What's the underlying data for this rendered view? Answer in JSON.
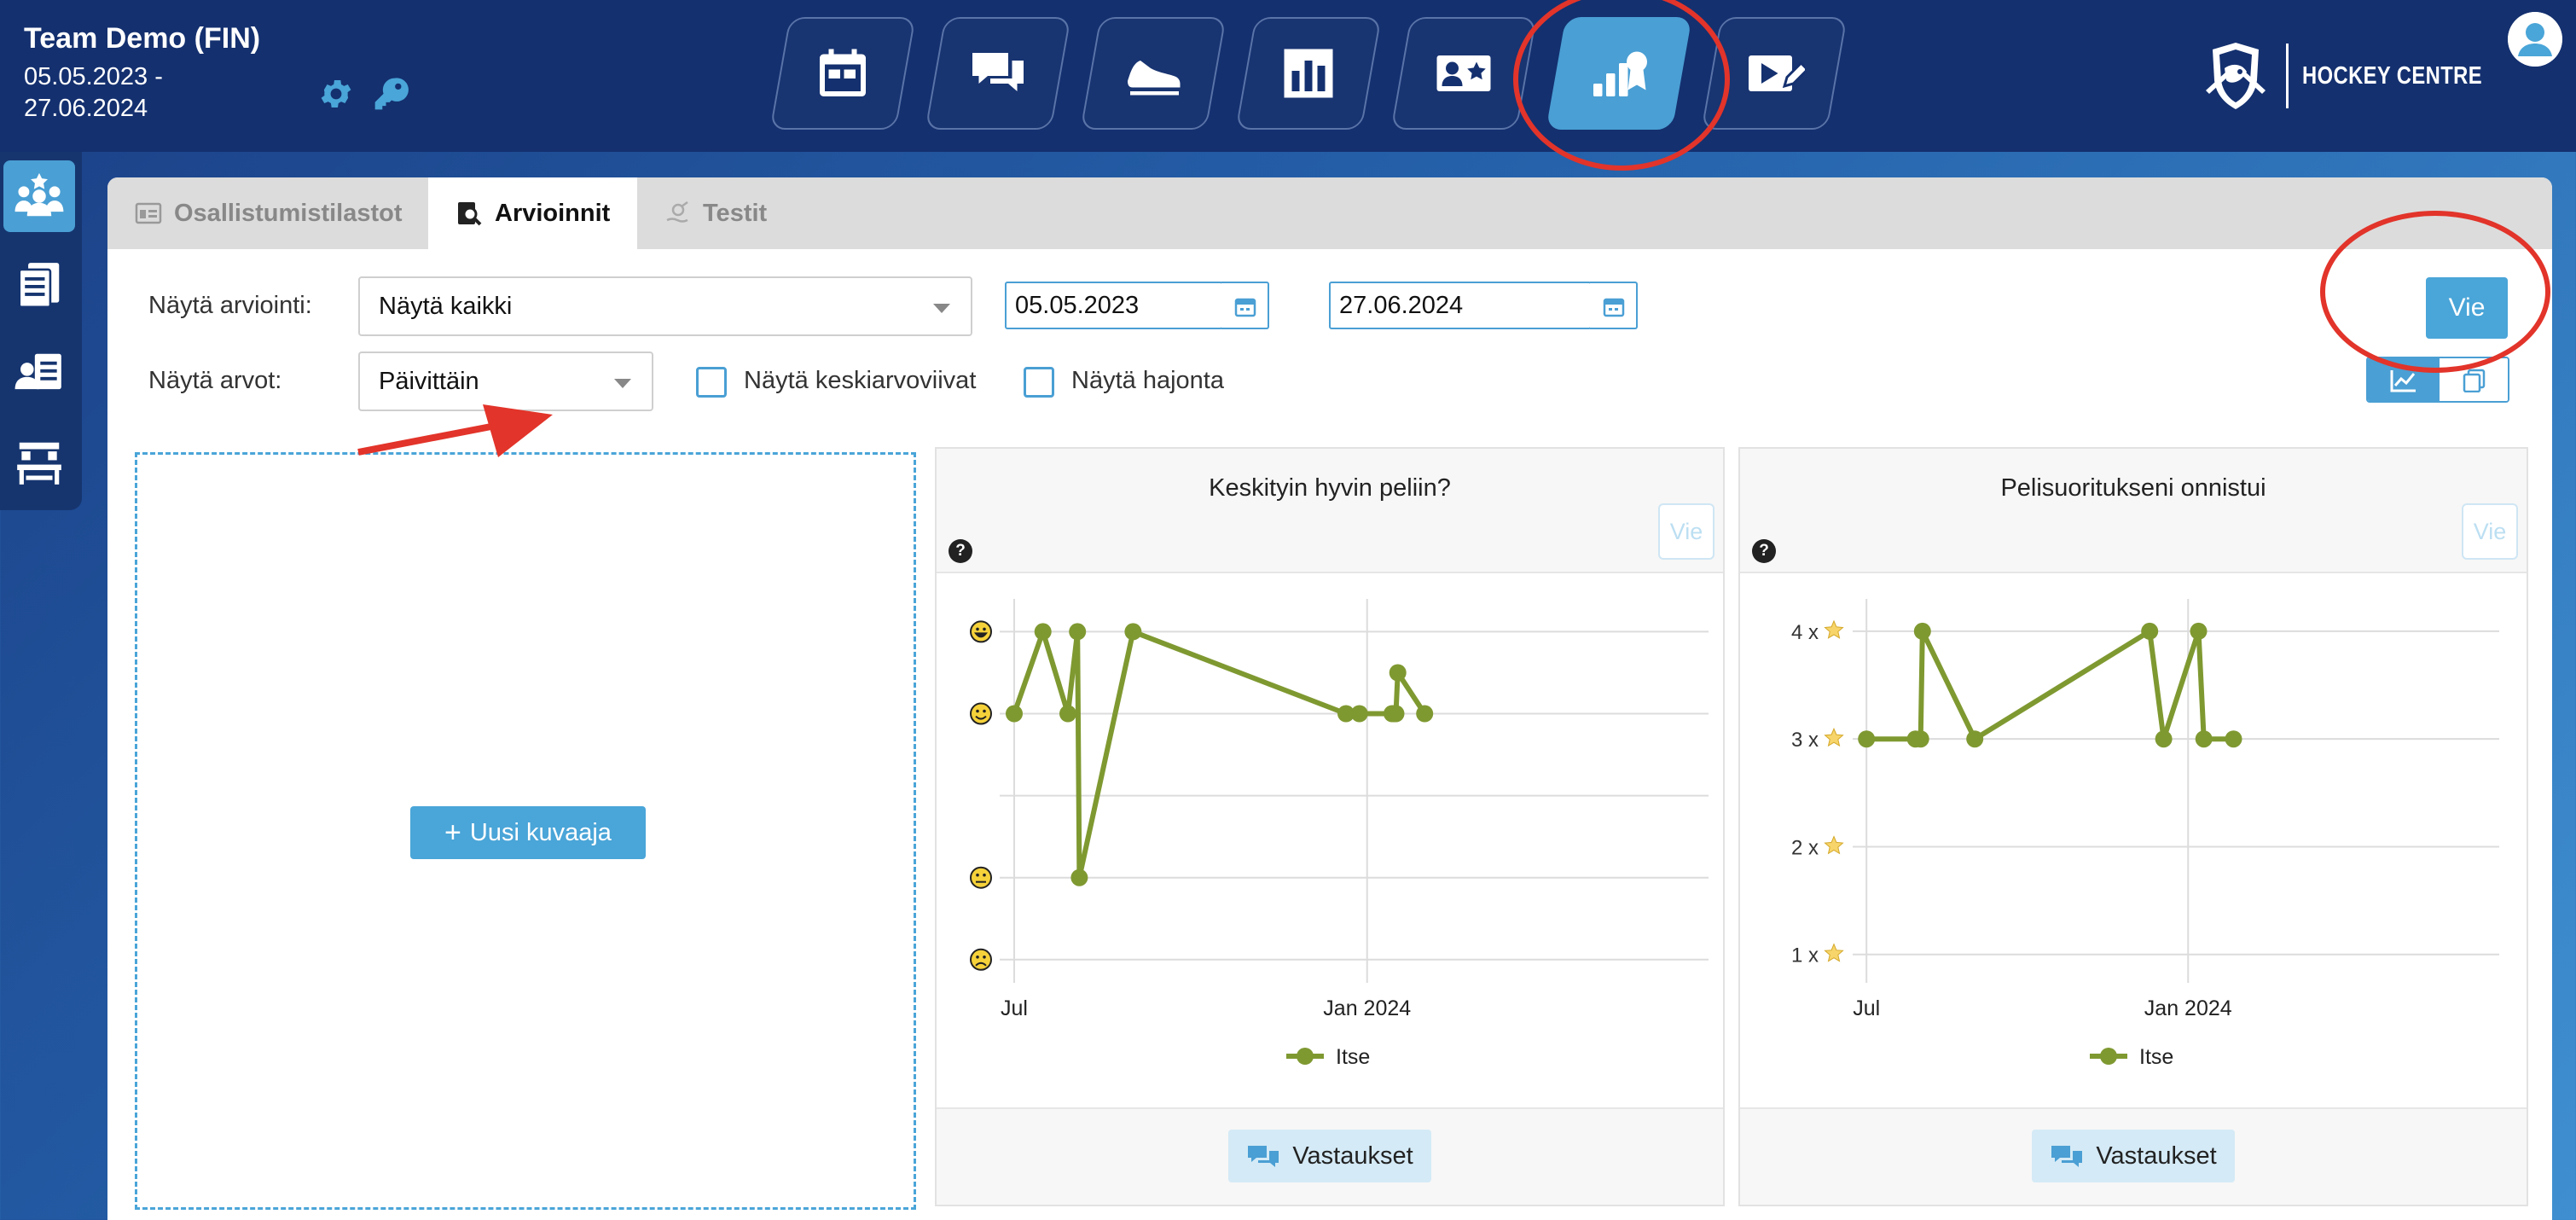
{
  "header": {
    "team_name": "Team Demo (FIN)",
    "date_range": "05.05.2023 - 27.06.2024",
    "brand_text": "HOCKEY CENTRE",
    "nav_icons": [
      "calendar-icon",
      "chat-icon",
      "skate-icon",
      "bar-chart-icon",
      "player-card-icon",
      "evaluation-stats-icon",
      "video-edit-icon"
    ],
    "active_nav": "evaluation-stats-icon"
  },
  "sidebar": {
    "items": [
      "team-star-icon",
      "clipboard-list-icon",
      "player-list-icon",
      "desk-icon"
    ],
    "active": "team-star-icon"
  },
  "tabs": [
    {
      "label": "Osallistumistilastot",
      "icon": "stats-card-icon",
      "active": false
    },
    {
      "label": "Arvioinnit",
      "icon": "search-doc-icon",
      "active": true
    },
    {
      "label": "Testit",
      "icon": "test-icon",
      "active": false
    }
  ],
  "filters": {
    "evaluation_label": "Näytä arviointi:",
    "evaluation_value": "Näytä kaikki",
    "values_label": "Näytä arvot:",
    "values_value": "Päivittäin",
    "start_date": "05.05.2023",
    "end_date": "27.06.2024",
    "show_average_lines": {
      "label": "Näytä keskiarvoviivat",
      "checked": false
    },
    "show_deviation": {
      "label": "Näytä hajonta",
      "checked": false
    }
  },
  "export_label": "Vie",
  "new_chart_label": "Uusi kuvaaja",
  "accent_color": "#4aa5d8",
  "series_color": "#7f9931",
  "annotation_color": "#e2342a",
  "chart_data": [
    {
      "type": "line",
      "title": "Keskityin hyvin peliin?",
      "export_label": "Vie",
      "answers_label": "Vastaukset",
      "x_axis_type": "date",
      "xlim": [
        "2023-06-27",
        "2024-06-27"
      ],
      "x_ticks": [
        {
          "date": "2023-07-01",
          "label": "Jul"
        },
        {
          "date": "2024-01-01",
          "label": "Jan 2024"
        }
      ],
      "ylim": [
        0.8,
        5.4
      ],
      "y_ticks": [
        {
          "value": 1,
          "icon": "sad-face-icon"
        },
        {
          "value": 2,
          "icon": "neutral-face-icon"
        },
        {
          "value": 3,
          "icon": ""
        },
        {
          "value": 4,
          "icon": "smile-face-icon"
        },
        {
          "value": 5,
          "icon": "grin-face-icon"
        }
      ],
      "grid": true,
      "legend": "bottom",
      "series": [
        {
          "name": "Itse",
          "points": [
            [
              "2023-07-01",
              4
            ],
            [
              "2023-07-16",
              5
            ],
            [
              "2023-07-29",
              4
            ],
            [
              "2023-08-03",
              5
            ],
            [
              "2023-08-04",
              2
            ],
            [
              "2023-09-01",
              5
            ],
            [
              "2023-12-21",
              4
            ],
            [
              "2023-12-28",
              4
            ],
            [
              "2024-01-14",
              4
            ],
            [
              "2024-01-15",
              4
            ],
            [
              "2024-01-16",
              4
            ],
            [
              "2024-01-17",
              4.5
            ],
            [
              "2024-01-31",
              4
            ]
          ]
        }
      ]
    },
    {
      "type": "line",
      "title": "Pelisuoritukseni onnistui",
      "export_label": "Vie",
      "answers_label": "Vastaukset",
      "x_axis_type": "date",
      "xlim": [
        "2023-06-27",
        "2024-06-27"
      ],
      "x_ticks": [
        {
          "date": "2023-07-01",
          "label": "Jul"
        },
        {
          "date": "2024-01-01",
          "label": "Jan 2024"
        }
      ],
      "ylim": [
        0.8,
        4.3
      ],
      "y_ticks": [
        {
          "value": 1,
          "label": "1 x"
        },
        {
          "value": 2,
          "label": "2 x"
        },
        {
          "value": 3,
          "label": "3 x"
        },
        {
          "value": 4,
          "label": "4 x"
        }
      ],
      "y_tick_icon": "star-icon",
      "grid": true,
      "legend": "bottom",
      "series": [
        {
          "name": "Itse",
          "points": [
            [
              "2023-07-01",
              3
            ],
            [
              "2023-07-29",
              3
            ],
            [
              "2023-08-01",
              3
            ],
            [
              "2023-08-02",
              4
            ],
            [
              "2023-09-01",
              3
            ],
            [
              "2023-12-10",
              4
            ],
            [
              "2023-12-18",
              3
            ],
            [
              "2024-01-07",
              4
            ],
            [
              "2024-01-10",
              3
            ],
            [
              "2024-01-27",
              3
            ]
          ]
        }
      ]
    }
  ]
}
